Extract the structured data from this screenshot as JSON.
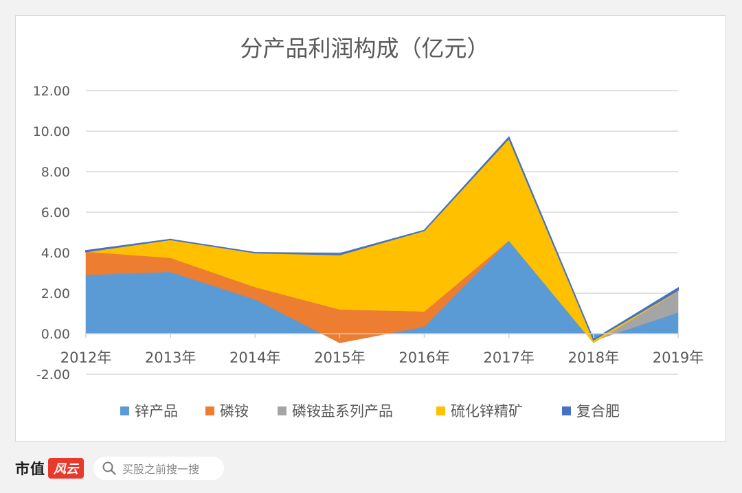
{
  "chart_data": {
    "type": "area",
    "title": "分产品利润构成（亿元）",
    "categories": [
      "2012年",
      "2013年",
      "2014年",
      "2015年",
      "2016年",
      "2017年",
      "2018年",
      "2019年"
    ],
    "series": [
      {
        "name": "锌产品",
        "values": [
          2.9,
          3.05,
          1.7,
          -0.45,
          0.35,
          4.6,
          -0.35,
          1.05
        ]
      },
      {
        "name": "磷铵",
        "values": [
          1.15,
          0.7,
          0.6,
          1.65,
          0.75,
          0.0,
          0.0,
          0.0
        ]
      },
      {
        "name": "磷铵盐系列产品",
        "values": [
          0.0,
          0.0,
          0.0,
          0.0,
          0.0,
          0.0,
          -0.1,
          1.05
        ]
      },
      {
        "name": "硫化锌精矿",
        "values": [
          0.0,
          0.9,
          1.7,
          2.7,
          4.0,
          5.05,
          0.15,
          0.05
        ]
      },
      {
        "name": "复合肥",
        "values": [
          0.05,
          0.0,
          0.0,
          0.05,
          0.0,
          0.05,
          0.0,
          0.1
        ]
      }
    ],
    "colors": [
      "#5b9bd5",
      "#ed7d31",
      "#a5a5a5",
      "#ffc000",
      "#4472c4"
    ],
    "yticks": [
      "12.00",
      "10.00",
      "8.00",
      "6.00",
      "4.00",
      "2.00",
      "0.00",
      "-2.00"
    ],
    "ylim": [
      -2,
      12
    ],
    "grid": true,
    "legend_position": "bottom"
  },
  "footer": {
    "brand_name": "市值",
    "brand_seal": "风云",
    "search_placeholder": "买股之前搜一搜"
  }
}
